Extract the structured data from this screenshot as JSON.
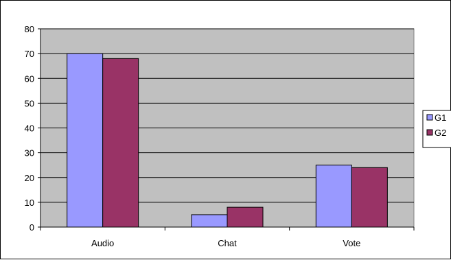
{
  "chart_data": {
    "type": "bar",
    "title": "",
    "xlabel": "",
    "ylabel": "",
    "categories": [
      "Audio",
      "Chat",
      "Vote"
    ],
    "series": [
      {
        "name": "G1",
        "values": [
          70,
          5,
          25
        ],
        "color": "#9999ff"
      },
      {
        "name": "G2",
        "values": [
          68,
          8,
          24
        ],
        "color": "#993366"
      }
    ],
    "ylim": [
      0,
      80
    ],
    "yticks": [
      0,
      10,
      20,
      30,
      40,
      50,
      60,
      70,
      80
    ],
    "grid": true,
    "plot_background": "#c0c0c0",
    "legend_position": "right"
  }
}
